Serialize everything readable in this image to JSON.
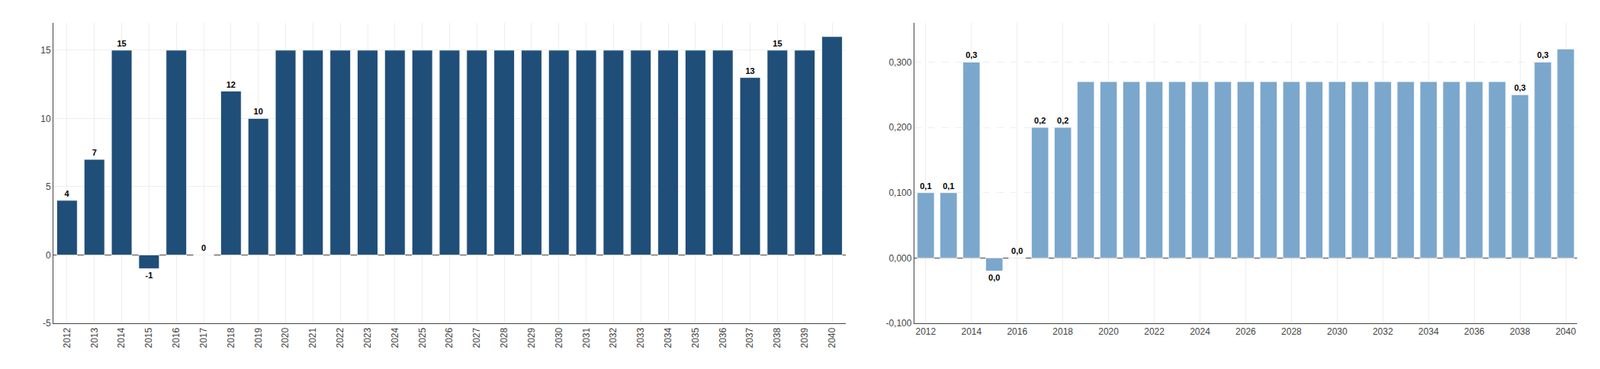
{
  "chart_data": [
    {
      "type": "bar",
      "categories": [
        "2012",
        "2013",
        "2014",
        "2015",
        "2016",
        "2017",
        "2018",
        "2019",
        "2020",
        "2021",
        "2022",
        "2023",
        "2024",
        "2025",
        "2026",
        "2027",
        "2028",
        "2029",
        "2030",
        "2031",
        "2032",
        "2033",
        "2034",
        "2035",
        "2036",
        "2037",
        "2038",
        "2039",
        "2040"
      ],
      "values": [
        4,
        7,
        15,
        -1,
        15,
        0,
        12,
        10,
        15,
        15,
        15,
        15,
        15,
        15,
        15,
        15,
        15,
        15,
        15,
        15,
        15,
        15,
        15,
        15,
        15,
        13,
        15,
        15,
        16
      ],
      "value_labels": [
        "4",
        "7",
        "15",
        "-1",
        null,
        "0",
        "12",
        "10",
        null,
        null,
        null,
        null,
        null,
        null,
        null,
        null,
        null,
        null,
        null,
        null,
        null,
        null,
        null,
        null,
        null,
        "13",
        "15",
        null,
        null
      ],
      "data_labels": true,
      "color": "#1F4E79",
      "ylim": [
        -5,
        17
      ],
      "yticks": [
        -5,
        0,
        5,
        10,
        15
      ],
      "grid": true
    },
    {
      "type": "bar",
      "categories": [
        "2012",
        null,
        "2014",
        null,
        "2016",
        null,
        "2018",
        null,
        "2020",
        null,
        "2022",
        null,
        "2024",
        null,
        "2026",
        null,
        "2028",
        null,
        "2030",
        null,
        "2032",
        null,
        "2034",
        null,
        "2036",
        null,
        "2038",
        null,
        "2040"
      ],
      "values": [
        0.1,
        0.1,
        0.3,
        -0.02,
        0.0,
        0.2,
        0.2,
        0.27,
        0.27,
        0.27,
        0.27,
        0.27,
        0.27,
        0.27,
        0.27,
        0.27,
        0.27,
        0.27,
        0.27,
        0.27,
        0.27,
        0.27,
        0.27,
        0.27,
        0.27,
        0.27,
        0.25,
        0.3,
        0.32
      ],
      "value_labels": [
        "0,1",
        "0,1",
        "0,3",
        "0,0",
        "0,0",
        "0,2",
        "0,2",
        null,
        null,
        null,
        null,
        null,
        null,
        null,
        null,
        null,
        null,
        null,
        null,
        null,
        null,
        null,
        null,
        null,
        null,
        null,
        "0,3",
        "0,3",
        null
      ],
      "data_labels": true,
      "color": "#7ba7cc",
      "ylim": [
        -0.1,
        0.36
      ],
      "yticks": [
        {
          "value": -0.1,
          "label": "-0,100"
        },
        {
          "value": 0.0,
          "label": "0,000"
        },
        {
          "value": 0.1,
          "label": "0,100"
        },
        {
          "value": 0.2,
          "label": "0,200"
        },
        {
          "value": 0.3,
          "label": "0,300"
        }
      ],
      "grid": true
    }
  ]
}
